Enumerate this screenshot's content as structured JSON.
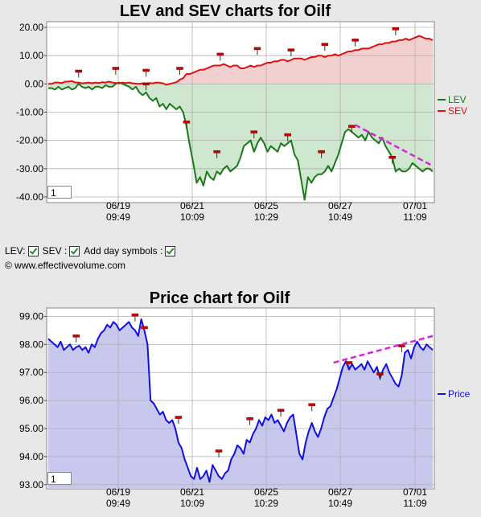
{
  "chart_data": [
    {
      "type": "area",
      "title": "LEV and SEV charts for Oilf",
      "ylim": [
        -42,
        22
      ],
      "yticks": [
        20,
        10,
        0,
        -10,
        -20,
        -30,
        -40
      ],
      "ytick_labels": [
        "20.00",
        "10.00",
        "0.00",
        "-10.00",
        "-20.00",
        "-30.00",
        "-40.00"
      ],
      "xtick_labels": [
        [
          "06/19",
          "09:49"
        ],
        [
          "06/21",
          "10:09"
        ],
        [
          "06/25",
          "10:29"
        ],
        [
          "06/27",
          "10:49"
        ],
        [
          "07/01",
          "11:09"
        ]
      ],
      "legend_position": "right",
      "grid": true,
      "series": [
        {
          "name": "LEV",
          "color": "#1a7a1a",
          "fill": "#cfe6cf",
          "values": [
            -1.5,
            -1.5,
            -2,
            -1,
            -2,
            -1.5,
            -1,
            -2,
            -1.5,
            0,
            -1,
            -1.5,
            -1,
            -2,
            -1,
            -1,
            -1.5,
            -0.5,
            -1,
            -1,
            0,
            0.5,
            0,
            -0.5,
            -1,
            -2,
            -1,
            -3,
            -4,
            -3,
            -5,
            -6,
            -5,
            -8,
            -7,
            -9,
            -7,
            -8,
            -9,
            -8,
            -10,
            -15,
            -22,
            -28,
            -35,
            -33,
            -36,
            -31,
            -33,
            -34,
            -31,
            -32,
            -30,
            -29,
            -31,
            -30,
            -29,
            -26,
            -22,
            -21,
            -20,
            -24,
            -21,
            -19,
            -21,
            -24,
            -22,
            -23,
            -24,
            -21,
            -22,
            -21,
            -20,
            -25,
            -27,
            -34,
            -41,
            -33,
            -35,
            -33,
            -32,
            -32,
            -31,
            -29,
            -31,
            -28,
            -25,
            -21,
            -17,
            -16,
            -17,
            -18,
            -19,
            -18,
            -20,
            -17,
            -19,
            -20,
            -21,
            -19,
            -22,
            -24,
            -26,
            -31,
            -30,
            -31,
            -31,
            -30,
            -28,
            -29,
            -30,
            -31,
            -30,
            -30,
            -31
          ]
        },
        {
          "name": "SEV",
          "color": "#e01010",
          "fill": "#f3d0d0",
          "values": [
            0,
            0,
            0.5,
            0.5,
            0.3,
            0.8,
            0.8,
            1,
            0.5,
            0.5,
            0.2,
            0.3,
            0.5,
            0.2,
            0.5,
            0.3,
            0.6,
            0.5,
            0.8,
            0.5,
            0.3,
            0.2,
            0.5,
            0.3,
            0.5,
            0.2,
            0.1,
            0,
            0.2,
            0.1,
            0.3,
            0.2,
            0.5,
            0.4,
            0.2,
            -0.3,
            0,
            0.3,
            0.6,
            1.5,
            2,
            3.5,
            3.5,
            4,
            4.5,
            5,
            5,
            5.5,
            6,
            6.5,
            6.5,
            6.5,
            7,
            6.5,
            6,
            6.5,
            6.5,
            5.5,
            5.5,
            6,
            6.5,
            6,
            6.5,
            6.5,
            7,
            7.5,
            7.5,
            8,
            8,
            8.5,
            8.5,
            8,
            8.5,
            9,
            9,
            9,
            8.5,
            9,
            9.5,
            9.5,
            10,
            10,
            9.5,
            10,
            10,
            10.5,
            10,
            10.5,
            11,
            11.5,
            11.5,
            12,
            12,
            12.5,
            12.5,
            12.5,
            13,
            13.5,
            14,
            14,
            14.5,
            14.5,
            15,
            15,
            15.5,
            15.5,
            16,
            15.5,
            16,
            16.5,
            17,
            16.5,
            16,
            16,
            15.5
          ]
        }
      ],
      "day_markers": [
        {
          "index": 9,
          "value": 4.5
        },
        {
          "index": 20,
          "value": 5.5
        },
        {
          "index": 29,
          "value": 0
        },
        {
          "index": 29,
          "value": 4.8
        },
        {
          "index": 39,
          "value": 5.5
        },
        {
          "index": 41,
          "value": -13.5
        },
        {
          "index": 50,
          "value": -24
        },
        {
          "index": 51,
          "value": 10.5
        },
        {
          "index": 61,
          "value": -17
        },
        {
          "index": 62,
          "value": 12.5
        },
        {
          "index": 71,
          "value": -18
        },
        {
          "index": 72,
          "value": 12
        },
        {
          "index": 81,
          "value": -24
        },
        {
          "index": 82,
          "value": 14
        },
        {
          "index": 90,
          "value": -15
        },
        {
          "index": 91,
          "value": 15.5
        },
        {
          "index": 102,
          "value": -26
        },
        {
          "index": 103,
          "value": 19.5
        }
      ],
      "trendline": {
        "from_index": 91,
        "from_value": -14.5,
        "to_index": 114,
        "to_value": -29
      }
    },
    {
      "type": "area",
      "title": "Price chart for Oilf",
      "ylim": [
        92.85,
        99.3
      ],
      "yticks": [
        99,
        98,
        97,
        96,
        95,
        94,
        93
      ],
      "ytick_labels": [
        "99.00",
        "98.00",
        "97.00",
        "96.00",
        "95.00",
        "94.00",
        "93.00"
      ],
      "xtick_labels": [
        [
          "06/19",
          "09:49"
        ],
        [
          "06/21",
          "10:09"
        ],
        [
          "06/25",
          "10:29"
        ],
        [
          "06/27",
          "10:49"
        ],
        [
          "07/01",
          "11:09"
        ]
      ],
      "legend_position": "right",
      "grid": true,
      "series": [
        {
          "name": "Price",
          "color": "#1010e0",
          "fill": "#c8c8ee",
          "values": [
            98.2,
            98.1,
            98.0,
            97.9,
            98.1,
            97.8,
            97.9,
            98.0,
            97.8,
            97.9,
            97.95,
            97.8,
            97.9,
            97.7,
            98.0,
            97.9,
            98.2,
            98.4,
            98.5,
            98.7,
            98.6,
            98.8,
            98.7,
            98.5,
            98.6,
            98.7,
            98.8,
            98.6,
            98.5,
            98.3,
            98.9,
            98.5,
            98.0,
            96.0,
            95.9,
            95.7,
            95.5,
            95.6,
            95.3,
            95.2,
            95.3,
            95.0,
            94.5,
            94.3,
            93.9,
            93.6,
            93.3,
            93.2,
            93.6,
            93.2,
            93.3,
            93.5,
            93.1,
            93.7,
            93.5,
            93.3,
            93.2,
            93.4,
            93.5,
            93.9,
            94.1,
            94.4,
            94.3,
            94.1,
            94.6,
            94.5,
            94.8,
            95.0,
            95.3,
            95.1,
            95.4,
            95.3,
            95.5,
            95.2,
            95.3,
            95.1,
            94.9,
            95.2,
            95.4,
            95.5,
            94.8,
            94.1,
            93.9,
            94.5,
            94.9,
            95.2,
            94.9,
            94.7,
            95.0,
            95.4,
            95.7,
            95.8,
            96.1,
            96.4,
            96.8,
            97.2,
            97.4,
            97.1,
            97.3,
            97.1,
            97.2,
            97.3,
            97.1,
            97.4,
            97.2,
            97.0,
            97.2,
            96.8,
            97.1,
            97.3,
            97.0,
            96.8,
            96.6,
            96.5,
            96.9,
            97.7,
            97.8,
            97.5,
            97.9,
            98.1,
            97.9,
            97.8,
            98.0,
            97.9,
            97.8
          ]
        }
      ],
      "day_markers": [
        {
          "index": 9,
          "value": 98.3
        },
        {
          "index": 28,
          "value": 99.05
        },
        {
          "index": 31,
          "value": 98.6
        },
        {
          "index": 42,
          "value": 95.4
        },
        {
          "index": 55,
          "value": 94.2
        },
        {
          "index": 65,
          "value": 95.35
        },
        {
          "index": 75,
          "value": 95.65
        },
        {
          "index": 85,
          "value": 95.85
        },
        {
          "index": 97,
          "value": 97.35
        },
        {
          "index": 107,
          "value": 96.95
        },
        {
          "index": 114,
          "value": 97.95
        }
      ],
      "trendline": {
        "from_index": 92,
        "from_value": 97.35,
        "to_index": 124,
        "to_value": 98.3
      }
    }
  ],
  "controls": {
    "lev_label": "LEV:",
    "sev_label": "SEV :",
    "daysym_label": "Add day symbols :",
    "copyright": "© www.effectivevolume.com"
  },
  "pagebox": {
    "top_value": "1",
    "bottom_value": "1"
  }
}
